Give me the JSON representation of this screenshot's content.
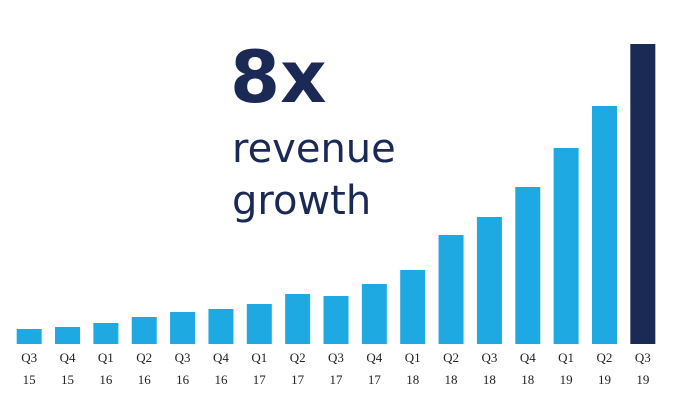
{
  "chart_data": {
    "type": "bar",
    "headline": "8x",
    "subtitle": [
      "revenue",
      "growth"
    ],
    "categories": [
      [
        "Q3",
        "15"
      ],
      [
        "Q4",
        "15"
      ],
      [
        "Q1",
        "16"
      ],
      [
        "Q2",
        "16"
      ],
      [
        "Q3",
        "16"
      ],
      [
        "Q4",
        "16"
      ],
      [
        "Q1",
        "17"
      ],
      [
        "Q2",
        "17"
      ],
      [
        "Q3",
        "17"
      ],
      [
        "Q4",
        "17"
      ],
      [
        "Q1",
        "18"
      ],
      [
        "Q2",
        "18"
      ],
      [
        "Q3",
        "18"
      ],
      [
        "Q4",
        "18"
      ],
      [
        "Q1",
        "19"
      ],
      [
        "Q2",
        "19"
      ],
      [
        "Q3",
        "19"
      ]
    ],
    "values": [
      15,
      17,
      21,
      27,
      32,
      35,
      40,
      50,
      48,
      60,
      74,
      109,
      127,
      157,
      196,
      238,
      300
    ],
    "colors": [
      "#1fa9e2",
      "#1fa9e2",
      "#1fa9e2",
      "#1fa9e2",
      "#1fa9e2",
      "#1fa9e2",
      "#1fa9e2",
      "#1fa9e2",
      "#1fa9e2",
      "#1fa9e2",
      "#1fa9e2",
      "#1fa9e2",
      "#1fa9e2",
      "#1fa9e2",
      "#1fa9e2",
      "#1fa9e2",
      "#1b2a55"
    ],
    "ylim": [
      0,
      300
    ]
  }
}
